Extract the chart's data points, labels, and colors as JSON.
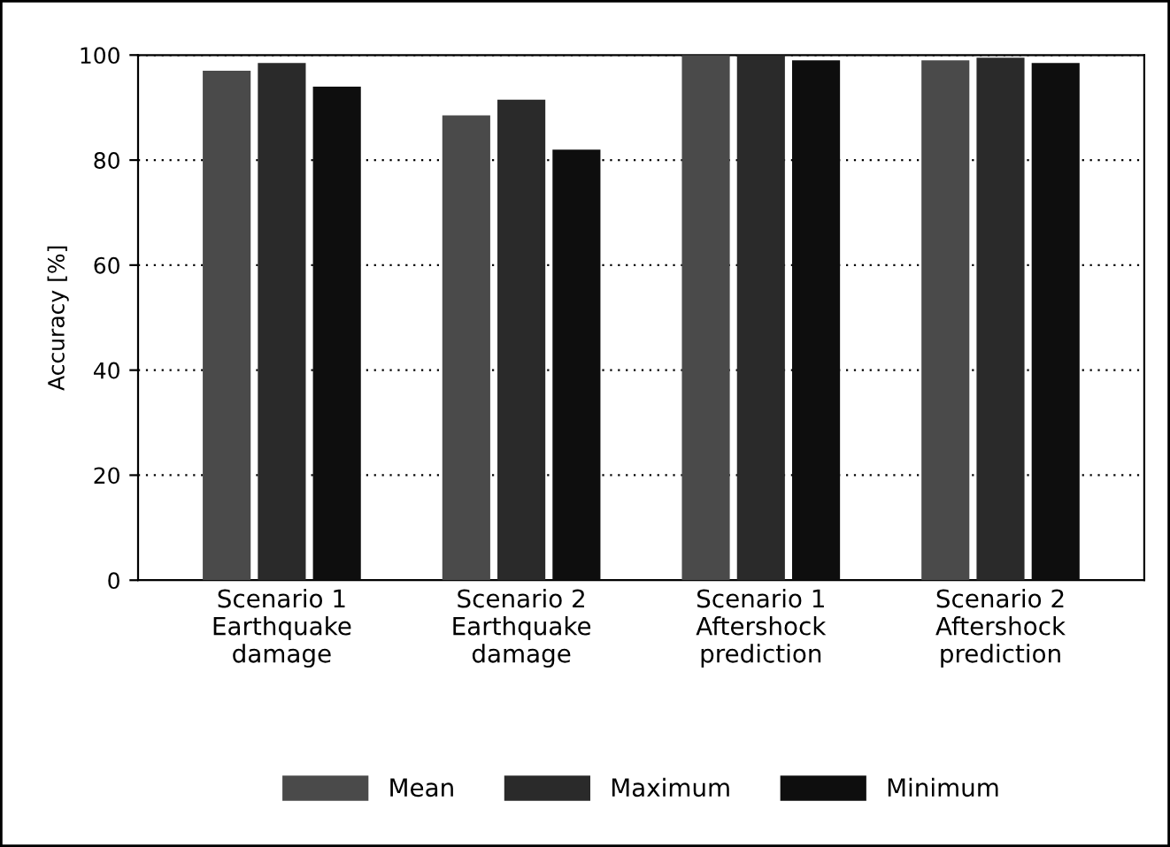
{
  "chart_data": {
    "type": "bar",
    "ylabel": "Accuracy [%]",
    "categories": [
      "Scenario 1\nEarthquake\ndamage",
      "Scenario 2\nEarthquake\ndamage",
      "Scenario 1\nAftershock\nprediction",
      "Scenario 2\nAftershock\nprediction"
    ],
    "series": [
      {
        "name": "Mean",
        "color": "#4a4a4a",
        "values": [
          97,
          88.5,
          100,
          99
        ]
      },
      {
        "name": "Maximum",
        "color": "#2a2a2a",
        "values": [
          98.5,
          91.5,
          100,
          99.5
        ]
      },
      {
        "name": "Minimum",
        "color": "#0e0e0e",
        "values": [
          94,
          82,
          99,
          98.5
        ]
      }
    ],
    "ylim": [
      0,
      100
    ],
    "yticks": [
      0,
      20,
      40,
      60,
      80,
      100
    ],
    "grid": "y",
    "legend": "bottom"
  }
}
